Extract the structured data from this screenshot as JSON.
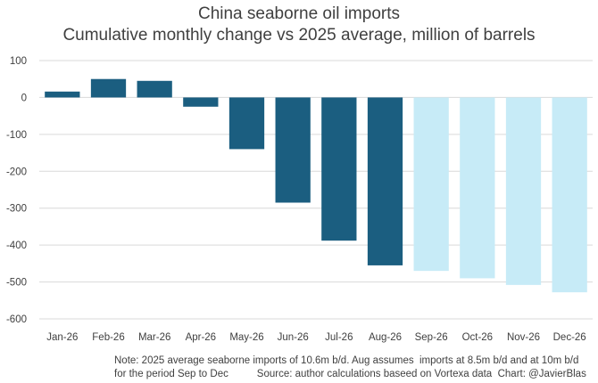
{
  "chart_data": {
    "type": "bar",
    "title": "China seaborne oil imports",
    "subtitle": "Cumulative monthly change vs 2025 average, million of barrels",
    "xlabel": "",
    "ylabel": "",
    "ylim": [
      -600,
      100
    ],
    "yticks": [
      100,
      0,
      -100,
      -200,
      -300,
      -400,
      -500,
      -600
    ],
    "grid": true,
    "categories": [
      "Jan-26",
      "Feb-26",
      "Mar-26",
      "Apr-26",
      "May-26",
      "Jun-26",
      "Jul-26",
      "Aug-26",
      "Sep-26",
      "Oct-26",
      "Nov-26",
      "Dec-26"
    ],
    "values": [
      16,
      50,
      45,
      -25,
      -140,
      -285,
      -388,
      -455,
      -470,
      -490,
      -508,
      -528
    ],
    "bar_colors": [
      "#1b5e80",
      "#1b5e80",
      "#1b5e80",
      "#1b5e80",
      "#1b5e80",
      "#1b5e80",
      "#1b5e80",
      "#1b5e80",
      "#c7ebf7",
      "#c7ebf7",
      "#c7ebf7",
      "#c7ebf7"
    ]
  },
  "note": {
    "line1": "Note: 2025 average seaborne imports of 10.6m b/d. Aug assumes  imports at 8.5m b/d and at 10m b/d",
    "line2": "for the period Sep to Dec          Source: author calculations baseed on Vortexa data  Chart: @JavierBlas"
  },
  "colors": {
    "actual": "#1b5e80",
    "projected": "#c7ebf7",
    "grid": "#d9d9d9",
    "text": "#404040"
  }
}
